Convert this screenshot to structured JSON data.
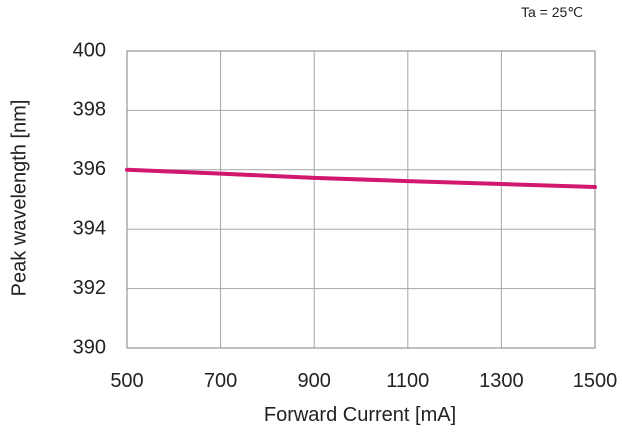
{
  "chart_data": {
    "type": "line",
    "title": "",
    "annotation": "Ta = 25℃",
    "xlabel": "Forward Current [mA]",
    "ylabel": "Peak wavelength [nm]",
    "xlim": [
      500,
      1500
    ],
    "ylim": [
      390,
      400
    ],
    "xticks": [
      500,
      700,
      900,
      1100,
      1300,
      1500
    ],
    "yticks": [
      390,
      392,
      394,
      396,
      398,
      400
    ],
    "xtick_labels": [
      "500",
      "700",
      "900",
      "1100",
      "1300",
      "1500"
    ],
    "ytick_labels": [
      "390",
      "392",
      "394",
      "396",
      "398",
      "400"
    ],
    "grid": true,
    "legend": "none",
    "series": [
      {
        "color": "#d2176e",
        "x": [
          500,
          700,
          900,
          1100,
          1300,
          1500
        ],
        "y": [
          396.0,
          395.87,
          395.73,
          395.62,
          395.52,
          395.42
        ]
      }
    ]
  }
}
